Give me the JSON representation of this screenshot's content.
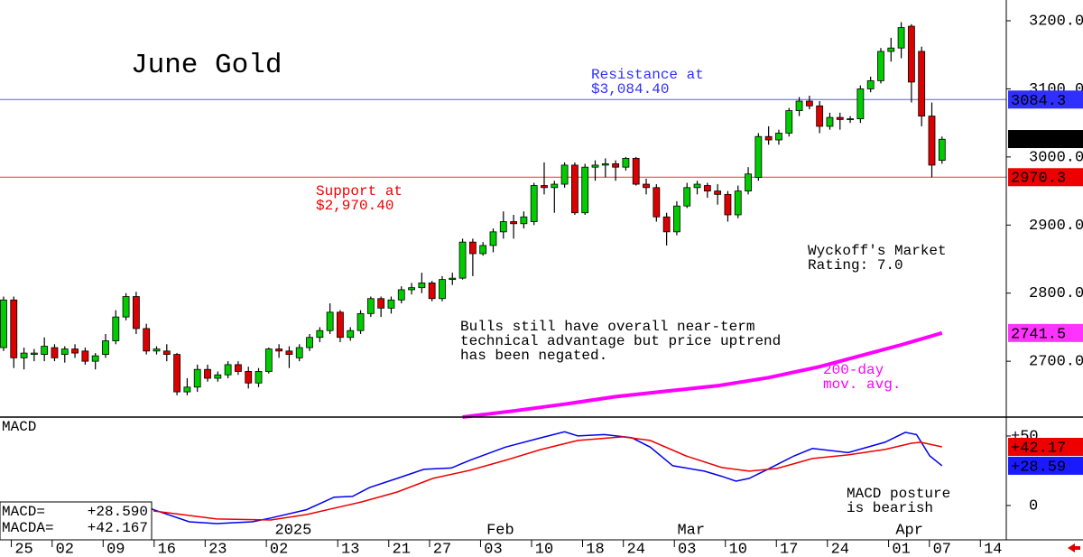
{
  "chart_data": [
    {
      "type": "candlestick",
      "title": "June  Gold",
      "xlim": [
        -0.35,
        98.3
      ],
      "ylim": [
        2618,
        3230.5
      ],
      "yticks": [
        {
          "value": 2700,
          "label": "2700.0"
        },
        {
          "value": 2800,
          "label": "2800.0"
        },
        {
          "value": 2900,
          "label": "2900.0"
        },
        {
          "value": 3000,
          "label": "3000.0"
        },
        {
          "value": 3100,
          "label": "3100.0"
        },
        {
          "value": 3200,
          "label": "3200.0"
        }
      ],
      "up_color": "#00cc00",
      "down_color": "#dd0000",
      "open": [
        2720,
        2790,
        2705,
        2710,
        2710,
        2720,
        2710,
        2718,
        2715,
        2700,
        2710,
        2730,
        2765,
        2795,
        2748,
        2715,
        2715,
        2710,
        2655,
        2662,
        2688,
        2675,
        2680,
        2695,
        2685,
        2668,
        2685,
        2718,
        2715,
        2705,
        2720,
        2735,
        2745,
        2772,
        2735,
        2745,
        2770,
        2792,
        2778,
        2790,
        2805,
        2808,
        2815,
        2792,
        2820,
        2822,
        2875,
        2858,
        2870,
        2890,
        2905,
        2902,
        2905,
        2958,
        2955,
        2960,
        2988,
        2918,
        2985,
        2988,
        2990,
        2985,
        2998,
        2960,
        2955,
        2912,
        2890,
        2928,
        2955,
        2958,
        2950,
        2945,
        2915,
        2950,
        2970,
        3030,
        3025,
        3035,
        3068,
        3082,
        3075,
        3045,
        3058,
        3055,
        3056,
        3100,
        3112,
        3155,
        3160,
        3192,
        3155,
        3060,
        2995
      ],
      "high": [
        2795,
        2795,
        2720,
        2718,
        2735,
        2725,
        2722,
        2725,
        2720,
        2712,
        2740,
        2775,
        2800,
        2802,
        2755,
        2722,
        2725,
        2712,
        2675,
        2695,
        2695,
        2685,
        2700,
        2700,
        2692,
        2690,
        2720,
        2725,
        2722,
        2725,
        2740,
        2750,
        2785,
        2775,
        2750,
        2775,
        2795,
        2795,
        2795,
        2810,
        2815,
        2830,
        2818,
        2825,
        2830,
        2880,
        2880,
        2875,
        2895,
        2920,
        2915,
        2920,
        2962,
        2992,
        2965,
        2992,
        2992,
        2990,
        2995,
        2998,
        2995,
        3000,
        3000,
        2968,
        2960,
        2918,
        2935,
        2962,
        2965,
        2962,
        2960,
        2950,
        2958,
        2985,
        3035,
        3045,
        3040,
        3072,
        3088,
        3090,
        3082,
        3065,
        3065,
        3060,
        3105,
        3118,
        3160,
        3175,
        3198,
        3195,
        3162,
        3080,
        3030
      ],
      "low": [
        2715,
        2690,
        2688,
        2700,
        2700,
        2700,
        2698,
        2705,
        2695,
        2688,
        2705,
        2725,
        2760,
        2740,
        2710,
        2710,
        2700,
        2650,
        2650,
        2655,
        2670,
        2670,
        2675,
        2680,
        2660,
        2662,
        2682,
        2705,
        2690,
        2700,
        2715,
        2728,
        2740,
        2728,
        2730,
        2740,
        2765,
        2765,
        2770,
        2785,
        2798,
        2800,
        2788,
        2788,
        2812,
        2820,
        2825,
        2855,
        2860,
        2880,
        2880,
        2895,
        2900,
        2945,
        2918,
        2955,
        2915,
        2915,
        2965,
        2970,
        2965,
        2980,
        2958,
        2945,
        2905,
        2870,
        2885,
        2925,
        2945,
        2940,
        2930,
        2905,
        2910,
        2945,
        2965,
        3018,
        3018,
        3030,
        3060,
        3070,
        3035,
        3040,
        3040,
        3050,
        3050,
        3095,
        3108,
        3140,
        3145,
        3080,
        3045,
        2970,
        2990
      ],
      "close": [
        2790,
        2705,
        2712,
        2712,
        2722,
        2705,
        2718,
        2712,
        2700,
        2708,
        2730,
        2765,
        2795,
        2748,
        2715,
        2718,
        2710,
        2655,
        2662,
        2688,
        2675,
        2680,
        2695,
        2685,
        2668,
        2685,
        2718,
        2715,
        2710,
        2720,
        2735,
        2745,
        2772,
        2735,
        2745,
        2770,
        2792,
        2778,
        2790,
        2805,
        2808,
        2815,
        2792,
        2820,
        2822,
        2875,
        2858,
        2870,
        2890,
        2905,
        2902,
        2912,
        2958,
        2955,
        2960,
        2988,
        2918,
        2985,
        2988,
        2990,
        2985,
        2998,
        2960,
        2955,
        2912,
        2890,
        2928,
        2955,
        2960,
        2950,
        2945,
        2915,
        2950,
        2975,
        3030,
        3025,
        3035,
        3068,
        3082,
        3075,
        3045,
        3058,
        3055,
        3056,
        3100,
        3112,
        3155,
        3160,
        3190,
        3110,
        3060,
        2988,
        3026
      ],
      "moving_average": {
        "color": "#ff00ff",
        "x": [
          45,
          50,
          55,
          60,
          65,
          70,
          75,
          80,
          85,
          88,
          92
        ],
        "values": [
          2618,
          2627,
          2637,
          2648,
          2656,
          2664,
          2676,
          2692,
          2712,
          2724,
          2741.5
        ]
      },
      "markers": [
        {
          "value": 3084.3,
          "color": "#2f2fff",
          "line": true
        },
        {
          "value": 3026.3,
          "color": "#000000",
          "line": false
        },
        {
          "value": 2970.3,
          "color": "#ee0000",
          "line": true
        },
        {
          "value": 2741.5,
          "color": "#ff33ff",
          "line": false
        }
      ],
      "annotations": [
        {
          "lines": [
            "Resistance at",
            "$3,084.40"
          ],
          "color": "#2f2fff"
        },
        {
          "lines": [
            "Support at",
            "$2,970.40"
          ],
          "color": "#ee0000"
        },
        {
          "lines": [
            "Wyckoff's Market",
            "Rating: 7.0"
          ],
          "color": "#000000"
        },
        {
          "lines": [
            "Bulls still have overall near-term",
            "technical advantage but price uptrend",
            "has been negated."
          ],
          "color": "#000000"
        },
        {
          "lines": [
            "200-day",
            "mov. avg."
          ],
          "color": "#ff00ff"
        }
      ]
    },
    {
      "type": "line",
      "title": "MACD",
      "xlim": [
        -0.35,
        98.3
      ],
      "ylim": [
        -24.7,
        63.6
      ],
      "yticks": [
        {
          "value": 50,
          "label": "+50"
        },
        0
      ],
      "series": [
        {
          "color": "#0000ee",
          "x": [
            12.9,
            14.7,
            18.2,
            20.9,
            24.4,
            26.2,
            29.7,
            32.4,
            34.2,
            35.9,
            38.6,
            41.2,
            43.9,
            45.7,
            49.2,
            52.7,
            55,
            56.3,
            58.9,
            61.6,
            63.4,
            65.6,
            68.7,
            70.4,
            71.8,
            73.1,
            74.9,
            77.5,
            79.3,
            82.8,
            86.4,
            88.4,
            89.5,
            90.8,
            92
          ],
          "values": [
            2.6,
            -3,
            -11.7,
            -13,
            -11.7,
            -9,
            -3,
            6,
            6.5,
            13,
            19.5,
            26,
            27,
            32.5,
            42,
            48.7,
            53,
            50,
            51,
            48.7,
            42,
            28.6,
            24.7,
            21,
            17.5,
            19.5,
            26,
            35.7,
            41,
            38,
            45.5,
            52.6,
            51,
            35.7,
            28.59
          ]
        },
        {
          "color": "#ee0000",
          "x": [
            14.7,
            20.9,
            26.2,
            29.7,
            35.1,
            38.6,
            42.1,
            45.7,
            49.2,
            52.7,
            56.3,
            60.7,
            63.4,
            66.9,
            70.4,
            73.1,
            75.8,
            79.3,
            82.8,
            86.4,
            89,
            89.9,
            92
          ],
          "values": [
            -3.9,
            -9.7,
            -10.4,
            -6.5,
            2.6,
            9.7,
            19.5,
            25.3,
            32.5,
            40.3,
            46.8,
            49.4,
            46.8,
            35.7,
            27.3,
            24.7,
            26.6,
            33.8,
            36.4,
            40.3,
            44.8,
            45.5,
            42.17
          ]
        }
      ],
      "markers": [
        {
          "value": 42.17,
          "label": "+42.17",
          "color": "#ee0000"
        },
        {
          "value": 28.59,
          "label": "+28.59",
          "color": "#1a1aff"
        }
      ],
      "readout": [
        {
          "label": "MACD=",
          "value": "+28.590"
        },
        {
          "label": "MACDA=",
          "value": "+42.167"
        }
      ],
      "annotations": [
        {
          "lines": [
            "MACD posture",
            "is bearish"
          ],
          "color": "#000000"
        }
      ],
      "xticks": [
        {
          "value": 2,
          "label": "25"
        },
        {
          "value": 6,
          "label": "02"
        },
        {
          "value": 11,
          "label": "09"
        },
        {
          "value": 16,
          "label": "16"
        },
        {
          "value": 21,
          "label": "23"
        },
        {
          "value": 27,
          "label": "02"
        },
        {
          "value": 34,
          "label": "13"
        },
        {
          "value": 39,
          "label": "21"
        },
        {
          "value": 43,
          "label": "27"
        },
        {
          "value": 48,
          "label": "03"
        },
        {
          "value": 53,
          "label": "10"
        },
        {
          "value": 58,
          "label": "18"
        },
        {
          "value": 62,
          "label": "24"
        },
        {
          "value": 67,
          "label": "03"
        },
        {
          "value": 72,
          "label": "10"
        },
        {
          "value": 77,
          "label": "17"
        },
        {
          "value": 82,
          "label": "24"
        },
        {
          "value": 88,
          "label": "01"
        },
        {
          "value": 92,
          "label": "07"
        },
        {
          "value": 97,
          "label": "14"
        }
      ],
      "month_ticks": [
        {
          "value": 28.4,
          "label": "2025"
        },
        {
          "value": 48.7,
          "label": "Feb"
        },
        {
          "value": 67.4,
          "label": "Mar"
        },
        {
          "value": 88.8,
          "label": "Apr"
        }
      ]
    }
  ]
}
